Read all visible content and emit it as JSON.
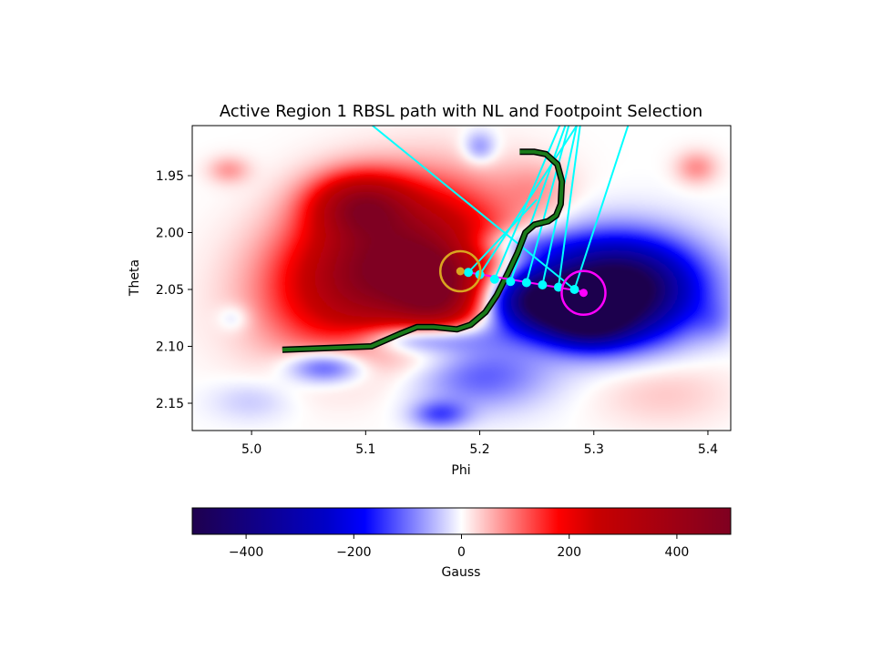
{
  "chart_data": {
    "type": "heatmap",
    "title": "Active Region 1 RBSL path with NL and Footpoint Selection",
    "xlabel": "Phi",
    "ylabel": "Theta",
    "xlim": [
      4.948,
      5.42
    ],
    "ylim": [
      2.174,
      1.906
    ],
    "x_ticks": [
      5.0,
      5.1,
      5.2,
      5.3,
      5.4
    ],
    "x_tick_labels": [
      "5.0",
      "5.1",
      "5.2",
      "5.3",
      "5.4"
    ],
    "y_ticks": [
      1.95,
      2.0,
      2.05,
      2.1,
      2.15
    ],
    "y_tick_labels": [
      "1.95",
      "2.00",
      "2.05",
      "2.10",
      "2.15"
    ],
    "grid": false,
    "colorbar": {
      "label": "Gauss",
      "range": [
        -500,
        500
      ],
      "ticks": [
        -400,
        -200,
        0,
        200,
        400
      ],
      "tick_labels": [
        "−400",
        "−200",
        "0",
        "200",
        "400"
      ],
      "colormap": "seismic",
      "orientation": "horizontal"
    },
    "field_blobs": [
      {
        "phi": 5.12,
        "theta": 2.03,
        "r_phi": 0.075,
        "r_theta": 0.05,
        "b": 520,
        "rot": -0.3
      },
      {
        "phi": 5.095,
        "theta": 1.975,
        "r_phi": 0.035,
        "r_theta": 0.022,
        "b": 300,
        "rot": 0
      },
      {
        "phi": 5.165,
        "theta": 2.055,
        "r_phi": 0.03,
        "r_theta": 0.03,
        "b": 250,
        "rot": 0
      },
      {
        "phi": 5.32,
        "theta": 2.05,
        "r_phi": 0.055,
        "r_theta": 0.035,
        "b": -600,
        "rot": 0
      },
      {
        "phi": 5.25,
        "theta": 2.06,
        "r_phi": 0.035,
        "r_theta": 0.022,
        "b": -400,
        "rot": 0
      },
      {
        "phi": 5.295,
        "theta": 2.078,
        "r_phi": 0.03,
        "r_theta": 0.018,
        "b": -300,
        "rot": 0
      },
      {
        "phi": 5.15,
        "theta": 2.092,
        "r_phi": 0.045,
        "r_theta": 0.012,
        "b": -220,
        "rot": 0
      },
      {
        "phi": 5.065,
        "theta": 2.118,
        "r_phi": 0.028,
        "r_theta": 0.012,
        "b": -160,
        "rot": 0
      },
      {
        "phi": 5.2,
        "theta": 2.125,
        "r_phi": 0.05,
        "r_theta": 0.025,
        "b": -120,
        "rot": 0
      },
      {
        "phi": 5.165,
        "theta": 2.16,
        "r_phi": 0.02,
        "r_theta": 0.01,
        "b": -120,
        "rot": 0
      },
      {
        "phi": 5.23,
        "theta": 2.01,
        "r_phi": 0.04,
        "r_theta": 0.012,
        "b": -100,
        "rot": 0
      },
      {
        "phi": 5.2,
        "theta": 1.925,
        "r_phi": 0.012,
        "r_theta": 0.012,
        "b": -90,
        "rot": 0
      },
      {
        "phi": 4.98,
        "theta": 1.945,
        "r_phi": 0.015,
        "r_theta": 0.01,
        "b": 70,
        "rot": 0
      },
      {
        "phi": 5.39,
        "theta": 1.943,
        "r_phi": 0.015,
        "r_theta": 0.012,
        "b": 80,
        "rot": 0
      },
      {
        "phi": 5.25,
        "theta": 1.96,
        "r_phi": 0.025,
        "r_theta": 0.02,
        "b": 50,
        "rot": 0
      },
      {
        "phi": 5.36,
        "theta": 2.14,
        "r_phi": 0.05,
        "r_theta": 0.025,
        "b": 40,
        "rot": 0
      },
      {
        "phi": 4.985,
        "theta": 2.075,
        "r_phi": 0.012,
        "r_theta": 0.01,
        "b": -50,
        "rot": 0
      },
      {
        "phi": 5.0,
        "theta": 2.148,
        "r_phi": 0.03,
        "r_theta": 0.015,
        "b": -40,
        "rot": 0
      },
      {
        "phi": 5.405,
        "theta": 2.078,
        "r_phi": 0.015,
        "r_theta": 0.015,
        "b": -40,
        "rot": 0
      }
    ],
    "rbsl_path": {
      "color": "#1a7a1a",
      "outline": "#000000",
      "points": [
        [
          5.027,
          2.103
        ],
        [
          5.105,
          2.1
        ],
        [
          5.13,
          2.089
        ],
        [
          5.145,
          2.083
        ],
        [
          5.16,
          2.083
        ],
        [
          5.18,
          2.085
        ],
        [
          5.192,
          2.081
        ],
        [
          5.205,
          2.07
        ],
        [
          5.215,
          2.055
        ],
        [
          5.225,
          2.035
        ],
        [
          5.233,
          2.018
        ],
        [
          5.24,
          2.0
        ],
        [
          5.248,
          1.993
        ],
        [
          5.26,
          1.99
        ],
        [
          5.267,
          1.985
        ],
        [
          5.271,
          1.975
        ],
        [
          5.272,
          1.955
        ],
        [
          5.268,
          1.94
        ],
        [
          5.258,
          1.931
        ],
        [
          5.248,
          1.929
        ],
        [
          5.235,
          1.929
        ]
      ]
    },
    "footpoints": {
      "color": "#00ffff",
      "points": [
        [
          5.19,
          2.035
        ],
        [
          5.2,
          2.037
        ],
        [
          5.213,
          2.041
        ],
        [
          5.227,
          2.043
        ],
        [
          5.241,
          2.044
        ],
        [
          5.255,
          2.046
        ],
        [
          5.269,
          2.048
        ],
        [
          5.283,
          2.05
        ]
      ]
    },
    "field_lines": [
      {
        "from": [
          5.19,
          2.035
        ],
        "to": [
          5.25,
          1.971
        ]
      },
      {
        "from": [
          5.2,
          2.037
        ],
        "to": [
          5.285,
          1.906
        ]
      },
      {
        "from": [
          5.213,
          2.041
        ],
        "to": [
          5.27,
          1.906
        ]
      },
      {
        "from": [
          5.227,
          2.043
        ],
        "to": [
          5.275,
          1.906
        ]
      },
      {
        "from": [
          5.241,
          2.044
        ],
        "to": [
          5.278,
          1.906
        ]
      },
      {
        "from": [
          5.255,
          2.046
        ],
        "to": [
          5.285,
          1.906
        ]
      },
      {
        "from": [
          5.269,
          2.048
        ],
        "to": [
          5.288,
          1.906
        ]
      },
      {
        "from": [
          5.283,
          2.05
        ],
        "to": [
          5.33,
          1.906
        ]
      },
      {
        "from": [
          5.283,
          2.05
        ],
        "to": [
          5.106,
          1.906
        ]
      }
    ],
    "neutral_line": {
      "color": "#ff00ff",
      "points": [
        [
          5.19,
          2.035
        ],
        [
          5.291,
          2.052
        ]
      ]
    },
    "positive_footpoint": {
      "phi": 5.183,
      "theta": 2.034,
      "marker_color": "#daa520",
      "circle_color": "#daa520"
    },
    "negative_footpoint": {
      "phi": 5.291,
      "theta": 2.053,
      "marker_color": "#ff00ff",
      "circle_color": "#ff00ff"
    }
  }
}
